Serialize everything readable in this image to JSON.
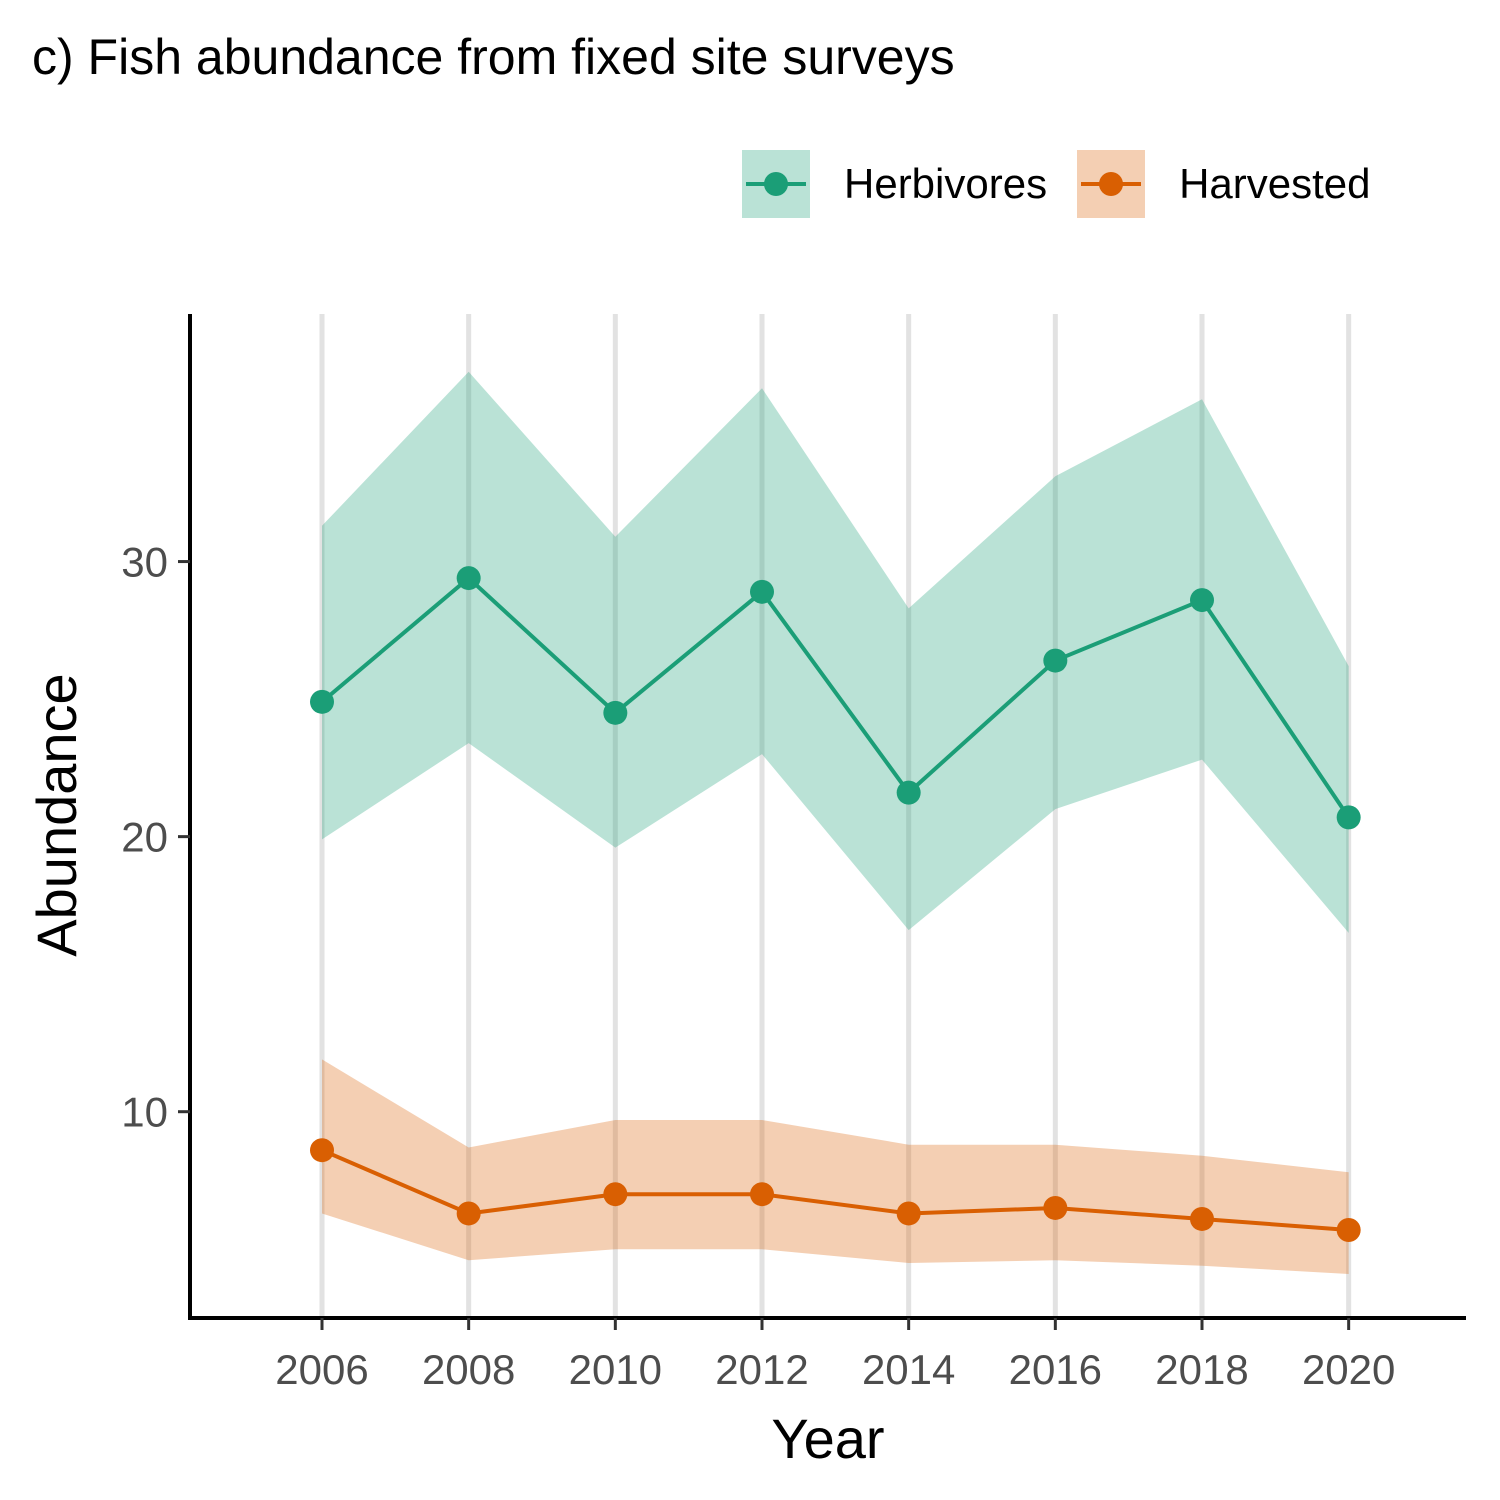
{
  "chart_data": {
    "type": "line",
    "title": "c) Fish abundance from fixed site surveys",
    "xlabel": "Year",
    "ylabel": "Abundance",
    "x": [
      2006,
      2008,
      2010,
      2012,
      2014,
      2016,
      2018,
      2020
    ],
    "x_ticks": [
      "2006",
      "2008",
      "2010",
      "2012",
      "2014",
      "2016",
      "2018",
      "2020"
    ],
    "y_ticks": [
      "10",
      "20",
      "30"
    ],
    "xlim": [
      2004.2,
      2021.6
    ],
    "ylim": [
      2.5,
      39.0
    ],
    "grid": "vertical major lines only",
    "legend_position": "top-right",
    "series": [
      {
        "name": "Herbivores",
        "color": "#1b9e77",
        "band_color": "#1b9e77",
        "band_opacity": 0.3,
        "values": [
          24.9,
          29.4,
          24.5,
          28.9,
          21.6,
          26.4,
          28.6,
          20.7
        ],
        "lower": [
          19.9,
          23.4,
          19.6,
          23.0,
          16.6,
          21.0,
          22.8,
          16.5
        ],
        "upper": [
          31.3,
          36.9,
          30.9,
          36.3,
          28.3,
          33.1,
          35.9,
          26.2
        ]
      },
      {
        "name": "Harvested",
        "color": "#d95f02",
        "band_color": "#d95f02",
        "band_opacity": 0.3,
        "values": [
          8.6,
          6.3,
          7.0,
          7.0,
          6.3,
          6.5,
          6.1,
          5.7
        ],
        "lower": [
          6.3,
          4.6,
          5.0,
          5.0,
          4.5,
          4.6,
          4.4,
          4.1
        ],
        "upper": [
          11.9,
          8.7,
          9.7,
          9.7,
          8.8,
          8.8,
          8.4,
          7.8
        ]
      }
    ]
  }
}
